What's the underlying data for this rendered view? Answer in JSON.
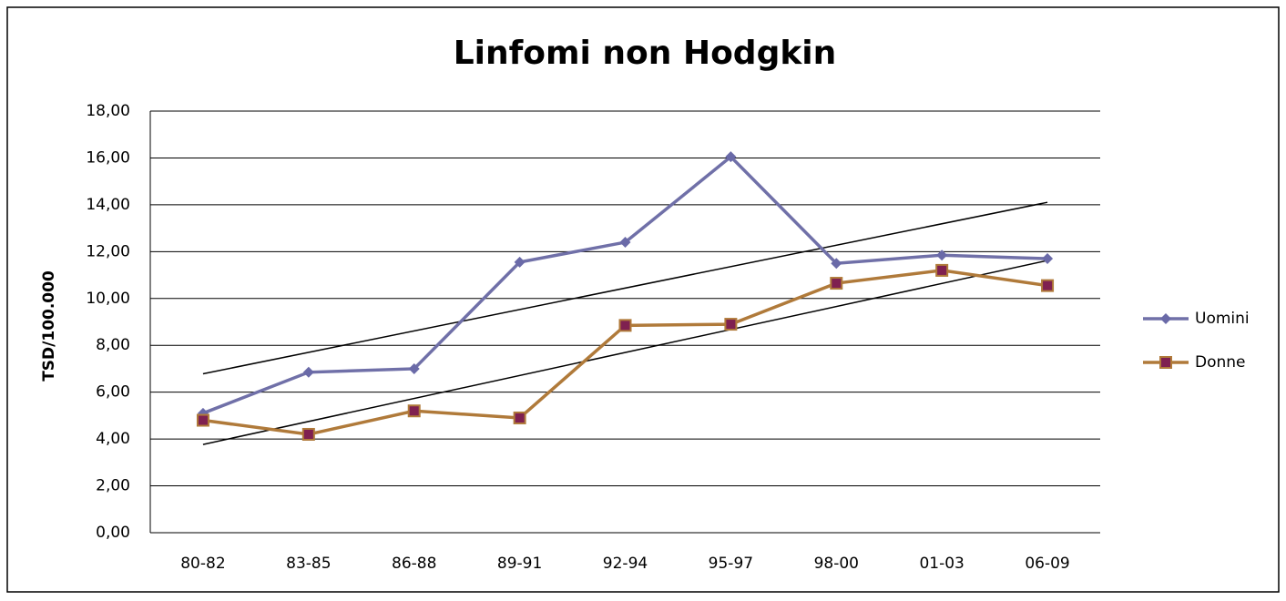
{
  "chart_data": {
    "type": "line",
    "title": "Linfomi non Hodgkin",
    "y_label": "TSD/100.000",
    "categories": [
      "80-82",
      "83-85",
      "86-88",
      "89-91",
      "92-94",
      "95-97",
      "98-00",
      "01-03",
      "06-09"
    ],
    "series": [
      {
        "name": "Uomini",
        "color": "#7070a8",
        "marker": "diamond",
        "marker_color": "#6a6aa8",
        "trendline": true,
        "values": [
          5.1,
          6.85,
          7.0,
          11.55,
          12.4,
          16.05,
          11.5,
          11.85,
          11.7
        ]
      },
      {
        "name": "Donne",
        "color": "#b07a3a",
        "marker": "square",
        "marker_color": "#7f2050",
        "trendline": true,
        "values": [
          4.8,
          4.2,
          5.2,
          4.9,
          8.85,
          8.9,
          10.65,
          11.2,
          10.55
        ]
      }
    ],
    "ylim": [
      0,
      18
    ],
    "yticks": [
      {
        "value": 0,
        "label": "0,00"
      },
      {
        "value": 2,
        "label": "2,00"
      },
      {
        "value": 4,
        "label": "4,00"
      },
      {
        "value": 6,
        "label": "6,00"
      },
      {
        "value": 8,
        "label": "8,00"
      },
      {
        "value": 10,
        "label": "10,00"
      },
      {
        "value": 12,
        "label": "12,00"
      },
      {
        "value": 14,
        "label": "14,00"
      },
      {
        "value": 16,
        "label": "16,00"
      },
      {
        "value": 18,
        "label": "18,00"
      }
    ],
    "grid": true,
    "legend": "right"
  }
}
